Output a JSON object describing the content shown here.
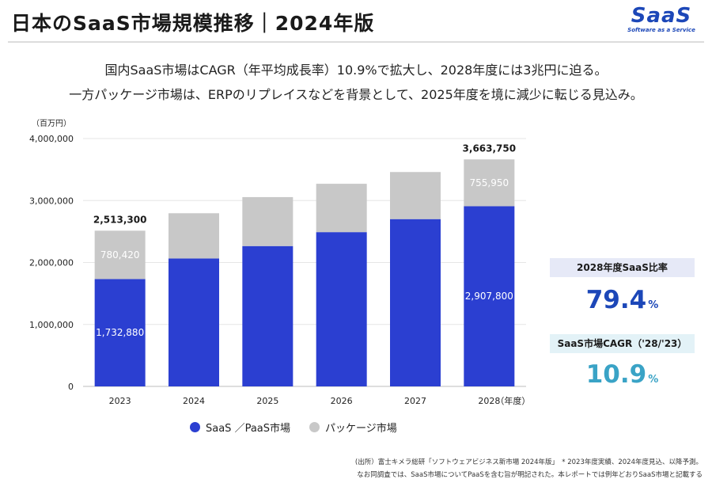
{
  "header": {
    "title": "日本のSaaS市場規模推移｜2024年版",
    "logo_text": "SaaS",
    "logo_subtitle": "Software as a Service"
  },
  "subtitle": {
    "line1": "国内SaaS市場はCAGR（年平均成長率）10.9%で拡大し、2028年度には3兆円に迫る。",
    "line2": "一方パッケージ市場は、ERPのリプレイスなどを背景として、2025年度を境に減少に転じる見込み。"
  },
  "colors": {
    "saas": "#2b3fd1",
    "package": "#c8c8c8",
    "kpi1": "#1c47b8",
    "kpi2": "#3aa3c6"
  },
  "chart_data": {
    "type": "bar",
    "stacked": true,
    "categories": [
      "2023",
      "2024",
      "2025",
      "2026",
      "2027",
      "2028"
    ],
    "series": [
      {
        "name": "SaaS ／PaaS市場",
        "values": [
          1732880,
          2065000,
          2265000,
          2490000,
          2700000,
          2907800
        ]
      },
      {
        "name": "パッケージ市場",
        "values": [
          780420,
          730000,
          790000,
          780000,
          760000,
          755950
        ]
      }
    ],
    "labels": {
      "segment_labels": [
        {
          "category": "2023",
          "series": "SaaS ／PaaS市場",
          "text": "1,732,880"
        },
        {
          "category": "2023",
          "series": "パッケージ市場",
          "text": "780,420"
        },
        {
          "category": "2028",
          "series": "SaaS ／PaaS市場",
          "text": "2,907,800"
        },
        {
          "category": "2028",
          "series": "パッケージ市場",
          "text": "755,950"
        }
      ],
      "total_labels": [
        {
          "category": "2023",
          "text": "2,513,300"
        },
        {
          "category": "2028",
          "text": "3,663,750"
        }
      ]
    },
    "yunit": "（百万円）",
    "xunit": "（年度）",
    "ylim": [
      0,
      4000000
    ],
    "yticks": [
      {
        "value": 0,
        "label": "0"
      },
      {
        "value": 1000000,
        "label": "1,000,000"
      },
      {
        "value": 2000000,
        "label": "2,000,000"
      },
      {
        "value": 3000000,
        "label": "3,000,000"
      },
      {
        "value": 4000000,
        "label": "4,000,000"
      }
    ],
    "gridlines": true,
    "legend": "bottom"
  },
  "kpis": {
    "share": {
      "label": "2028年度SaaS比率",
      "value": "79.4",
      "unit": "%"
    },
    "cagr": {
      "label": "SaaS市場CAGR（'28/'23）",
      "value": "10.9",
      "unit": "%"
    }
  },
  "footnotes": {
    "line1": "(出所）富士キメラ総研「ソフトウェアビジネス新市場 2024年版」　* 2023年度実績、2024年度見込、以降予測。",
    "line2": "なお同調査では、SaaS市場についてPaaSを含む旨が明記された。本レポートでは例年どおりSaaS市場と記載する"
  }
}
